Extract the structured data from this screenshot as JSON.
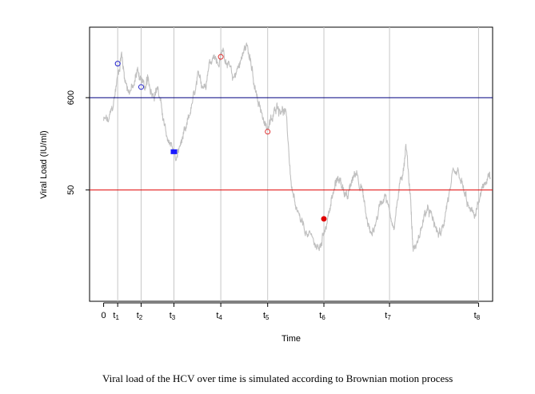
{
  "caption": "Viral load of the HCV over time is simulated according to Brownian motion process",
  "chart_data": {
    "type": "line",
    "xlabel": "Time",
    "ylabel": "Viral Load (IU/ml)",
    "y_ticks": [
      {
        "label": "600",
        "value": 600
      },
      {
        "label": "50",
        "value": 50
      }
    ],
    "x_ticks": [
      {
        "label": "0",
        "sub": "",
        "x": 0
      },
      {
        "label": "t",
        "sub": "1",
        "x": 0.3
      },
      {
        "label": "t",
        "sub": "2",
        "x": 0.8
      },
      {
        "label": "t",
        "sub": "3",
        "x": 1.5
      },
      {
        "label": "t",
        "sub": "4",
        "x": 2.5
      },
      {
        "label": "t",
        "sub": "5",
        "x": 3.5
      },
      {
        "label": "t",
        "sub": "6",
        "x": 4.7
      },
      {
        "label": "t",
        "sub": "7",
        "x": 6.1
      },
      {
        "label": "t",
        "sub": "8",
        "x": 8.0
      }
    ],
    "xlim": [
      -0.3,
      8.3
    ],
    "y_scale": "log",
    "ylim": [
      2.5,
      4000
    ],
    "grid": "vertical lines at observation times",
    "reference_lines": [
      {
        "value": 600,
        "color": "#000080"
      },
      {
        "value": 50,
        "color": "#e00000"
      }
    ],
    "series": [
      {
        "style": "brownian path",
        "color": "#c0c0c0",
        "anchors": [
          [
            0.0,
            330
          ],
          [
            0.1,
            320
          ],
          [
            0.2,
            470
          ],
          [
            0.3,
            1100
          ],
          [
            0.38,
            2000
          ],
          [
            0.45,
            1000
          ],
          [
            0.55,
            700
          ],
          [
            0.65,
            800
          ],
          [
            0.72,
            1300
          ],
          [
            0.8,
            1000
          ],
          [
            0.9,
            750
          ],
          [
            0.95,
            1000
          ],
          [
            1.05,
            650
          ],
          [
            1.15,
            800
          ],
          [
            1.25,
            400
          ],
          [
            1.35,
            200
          ],
          [
            1.45,
            170
          ],
          [
            1.55,
            110
          ],
          [
            1.65,
            180
          ],
          [
            1.75,
            250
          ],
          [
            1.85,
            400
          ],
          [
            1.95,
            700
          ],
          [
            2.05,
            1100
          ],
          [
            2.15,
            800
          ],
          [
            2.25,
            1500
          ],
          [
            2.35,
            1900
          ],
          [
            2.45,
            1400
          ],
          [
            2.55,
            2200
          ],
          [
            2.65,
            1500
          ],
          [
            2.75,
            1000
          ],
          [
            2.85,
            1300
          ],
          [
            2.95,
            1800
          ],
          [
            3.05,
            2500
          ],
          [
            3.12,
            1800
          ],
          [
            3.2,
            900
          ],
          [
            3.3,
            500
          ],
          [
            3.4,
            350
          ],
          [
            3.5,
            260
          ],
          [
            3.6,
            330
          ],
          [
            3.7,
            500
          ],
          [
            3.8,
            430
          ],
          [
            3.9,
            380
          ],
          [
            4.0,
            60
          ],
          [
            4.1,
            30
          ],
          [
            4.2,
            22
          ],
          [
            4.35,
            15
          ],
          [
            4.5,
            12
          ],
          [
            4.6,
            10
          ],
          [
            4.7,
            16
          ],
          [
            4.8,
            27
          ],
          [
            4.9,
            45
          ],
          [
            5.0,
            70
          ],
          [
            5.1,
            55
          ],
          [
            5.2,
            40
          ],
          [
            5.3,
            65
          ],
          [
            5.4,
            80
          ],
          [
            5.5,
            55
          ],
          [
            5.6,
            25
          ],
          [
            5.7,
            15
          ],
          [
            5.8,
            20
          ],
          [
            5.9,
            35
          ],
          [
            6.0,
            45
          ],
          [
            6.1,
            28
          ],
          [
            6.2,
            18
          ],
          [
            6.3,
            50
          ],
          [
            6.4,
            90
          ],
          [
            6.45,
            170
          ],
          [
            6.55,
            40
          ],
          [
            6.6,
            10
          ],
          [
            6.7,
            12
          ],
          [
            6.8,
            20
          ],
          [
            6.9,
            30
          ],
          [
            7.0,
            25
          ],
          [
            7.1,
            17
          ],
          [
            7.2,
            15
          ],
          [
            7.3,
            28
          ],
          [
            7.4,
            55
          ],
          [
            7.5,
            80
          ],
          [
            7.6,
            70
          ],
          [
            7.7,
            45
          ],
          [
            7.8,
            30
          ],
          [
            7.9,
            25
          ],
          [
            8.0,
            35
          ],
          [
            8.1,
            55
          ],
          [
            8.2,
            75
          ],
          [
            8.25,
            70
          ]
        ]
      }
    ],
    "observations": [
      {
        "x": 0.3,
        "y": 1500,
        "shape": "circle",
        "filled": false,
        "color": "#2222cc"
      },
      {
        "x": 0.8,
        "y": 800,
        "shape": "circle",
        "filled": false,
        "color": "#2222cc"
      },
      {
        "x": 1.5,
        "y": 140,
        "shape": "square",
        "filled": true,
        "color": "#1a1aff"
      },
      {
        "x": 2.5,
        "y": 1800,
        "shape": "circle",
        "filled": false,
        "color": "#e03030"
      },
      {
        "x": 3.5,
        "y": 240,
        "shape": "circle",
        "filled": false,
        "color": "#e03030"
      },
      {
        "x": 4.7,
        "y": 23,
        "shape": "circle",
        "filled": true,
        "color": "#e00000"
      }
    ]
  }
}
